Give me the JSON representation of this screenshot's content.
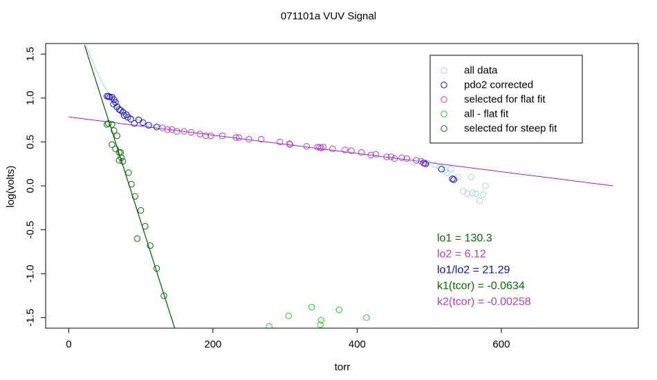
{
  "chart_data": {
    "type": "scatter",
    "title": "071101a   VUV Signal",
    "xlabel": "torr",
    "ylabel": "log(volts)",
    "xlim": [
      -32,
      790
    ],
    "ylim": [
      -1.62,
      1.62
    ],
    "xticks": [
      0,
      200,
      400,
      600
    ],
    "yticks": [
      -1.5,
      -1.0,
      -0.5,
      0.0,
      0.5,
      1.0,
      1.5
    ],
    "ytick_labels": [
      "-1.5",
      "-1.0",
      "-0.5",
      "0.0",
      "0.5",
      "1.0",
      "1.5"
    ],
    "colors": {
      "all_data": "#a6d2ee",
      "pdo2": "#1010c8",
      "flat": "#b040c8",
      "flat_line": "#a020c0",
      "all_minus_flat": "#22cc22",
      "steep": "#0a6a0a"
    },
    "legend": {
      "position": "top-right",
      "entries": [
        "all data",
        "pdo2 corrected",
        "selected for flat fit",
        "all - flat fit",
        "selected for steep fit"
      ]
    },
    "series": [
      {
        "name": "all data",
        "points": [
          [
            478,
            0.27
          ],
          [
            488,
            0.28
          ],
          [
            497,
            0.26
          ],
          [
            508,
            0.24
          ],
          [
            515,
            0.21
          ],
          [
            522,
            0.18
          ],
          [
            530,
            0.19
          ],
          [
            540,
            0.1
          ],
          [
            547,
            -0.06
          ],
          [
            553,
            -0.09
          ],
          [
            560,
            -0.08
          ],
          [
            565,
            -0.09
          ],
          [
            558,
            0.1
          ],
          [
            570,
            -0.17
          ],
          [
            575,
            -0.1
          ],
          [
            578,
            0.0
          ],
          [
            534,
            0.08
          ],
          [
            525,
            0.15
          ]
        ]
      },
      {
        "name": "pdo2 corrected",
        "points": [
          [
            53,
            1.02
          ],
          [
            55,
            1.02
          ],
          [
            57,
            1.01
          ],
          [
            60,
            1.01
          ],
          [
            62,
            0.93
          ],
          [
            63,
            0.98
          ],
          [
            65,
            0.95
          ],
          [
            67,
            0.9
          ],
          [
            70,
            0.87
          ],
          [
            72,
            0.86
          ],
          [
            75,
            0.84
          ],
          [
            77,
            0.8
          ],
          [
            80,
            0.81
          ],
          [
            82,
            0.78
          ],
          [
            86,
            0.76
          ],
          [
            91,
            0.71
          ],
          [
            97,
            0.75
          ],
          [
            103,
            0.72
          ],
          [
            111,
            0.69
          ],
          [
            122,
            0.67
          ],
          [
            492,
            0.26
          ],
          [
            495,
            0.25
          ],
          [
            517,
            0.19
          ],
          [
            532,
            0.08
          ],
          [
            534,
            0.07
          ]
        ]
      },
      {
        "name": "selected for flat fit",
        "points": [
          [
            130,
            0.66
          ],
          [
            137,
            0.64
          ],
          [
            143,
            0.64
          ],
          [
            150,
            0.62
          ],
          [
            160,
            0.62
          ],
          [
            170,
            0.61
          ],
          [
            182,
            0.59
          ],
          [
            190,
            0.57
          ],
          [
            197,
            0.57
          ],
          [
            213,
            0.57
          ],
          [
            232,
            0.55
          ],
          [
            236,
            0.55
          ],
          [
            250,
            0.53
          ],
          [
            267,
            0.53
          ],
          [
            293,
            0.5
          ],
          [
            306,
            0.48
          ],
          [
            307,
            0.47
          ],
          [
            330,
            0.45
          ],
          [
            345,
            0.44
          ],
          [
            348,
            0.44
          ],
          [
            350,
            0.43
          ],
          [
            353,
            0.44
          ],
          [
            366,
            0.42
          ],
          [
            383,
            0.41
          ],
          [
            392,
            0.4
          ],
          [
            406,
            0.38
          ],
          [
            419,
            0.35
          ],
          [
            426,
            0.36
          ],
          [
            441,
            0.33
          ],
          [
            447,
            0.33
          ],
          [
            452,
            0.31
          ],
          [
            462,
            0.32
          ],
          [
            469,
            0.31
          ],
          [
            482,
            0.29
          ],
          [
            489,
            0.28
          ],
          [
            494,
            0.26
          ]
        ]
      },
      {
        "name": "all - flat fit",
        "points": [
          [
            278,
            -1.6
          ],
          [
            305,
            -1.48
          ],
          [
            337,
            -1.38
          ],
          [
            349,
            -1.58
          ],
          [
            350,
            -1.53
          ],
          [
            375,
            -1.41
          ],
          [
            413,
            -1.5
          ]
        ]
      },
      {
        "name": "selected for steep fit",
        "points": [
          [
            53,
            0.7
          ],
          [
            55,
            0.71
          ],
          [
            60,
            0.7
          ],
          [
            63,
            0.63
          ],
          [
            67,
            0.57
          ],
          [
            60,
            0.47
          ],
          [
            65,
            0.42
          ],
          [
            70,
            0.38
          ],
          [
            72,
            0.38
          ],
          [
            73,
            0.32
          ],
          [
            70,
            0.29
          ],
          [
            75,
            0.28
          ],
          [
            83,
            0.15
          ],
          [
            87,
            0.02
          ],
          [
            92,
            -0.12
          ],
          [
            100,
            -0.28
          ],
          [
            106,
            -0.46
          ],
          [
            113,
            -0.68
          ],
          [
            95,
            -0.6
          ],
          [
            122,
            -0.94
          ],
          [
            132,
            -1.25
          ]
        ]
      }
    ],
    "lines": [
      {
        "name": "flat fit",
        "points": [
          [
            0,
            0.785
          ],
          [
            755,
            0.0
          ]
        ]
      },
      {
        "name": "steep fit",
        "points": [
          [
            22,
            1.6
          ],
          [
            147,
            -1.62
          ]
        ]
      },
      {
        "name": "all data curve",
        "points": [
          [
            22,
            1.62
          ],
          [
            30,
            1.48
          ],
          [
            40,
            1.28
          ],
          [
            50,
            1.12
          ],
          [
            58,
            1.03
          ],
          [
            65,
            0.96
          ],
          [
            72,
            0.9
          ],
          [
            80,
            0.84
          ],
          [
            90,
            0.78
          ],
          [
            100,
            0.73
          ],
          [
            110,
            0.7
          ],
          [
            120,
            0.685
          ],
          [
            130,
            0.67
          ]
        ]
      }
    ],
    "annotations": [
      {
        "text": "lo1 =  130.3",
        "color": "#0a6a0a"
      },
      {
        "text": "lo2 =  6.12",
        "color": "#b040c8"
      },
      {
        "text": "lo1/lo2 =  21.29",
        "color": "#1010c8"
      },
      {
        "text": "k1(tcor) =  -0.0634",
        "color": "#0a6a0a"
      },
      {
        "text": "k2(tcor) =  -0.00258",
        "color": "#b040c8"
      }
    ]
  }
}
